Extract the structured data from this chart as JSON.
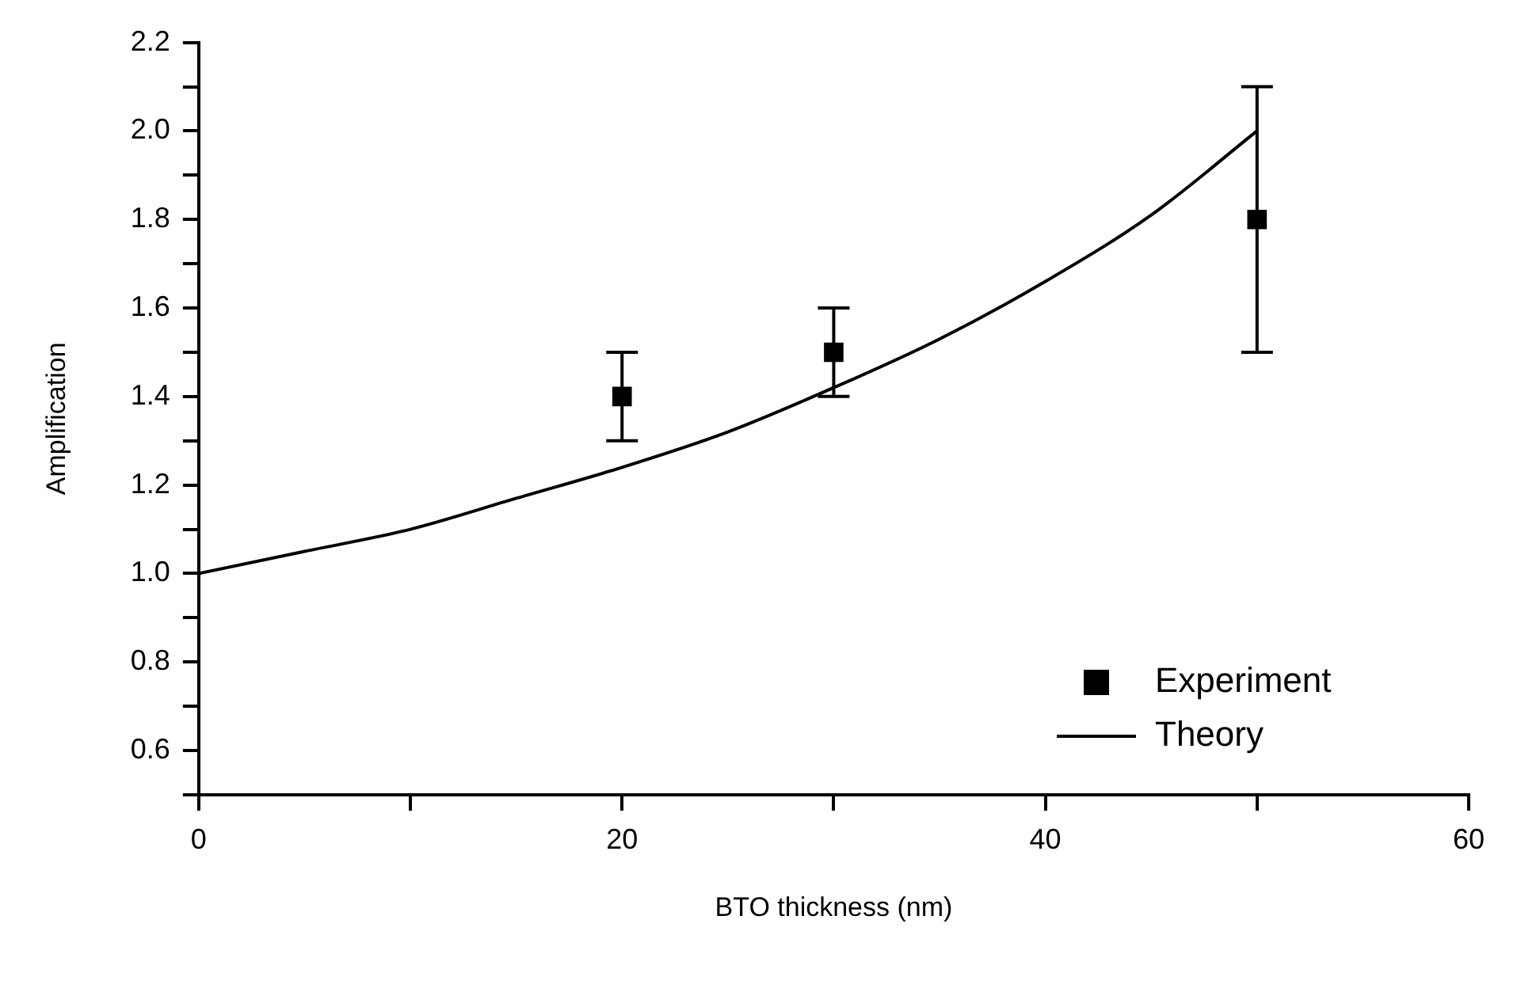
{
  "chart_data": {
    "type": "scatter",
    "xlabel": "BTO thickness (nm)",
    "ylabel": "Amplification",
    "xlim": [
      0,
      60
    ],
    "xticks": [
      0,
      {
        "value": 10,
        "label": null
      },
      20,
      {
        "value": 30,
        "label": null
      },
      40,
      {
        "value": 50,
        "label": null
      },
      60
    ],
    "ylim": [
      0.5,
      2.2
    ],
    "yticks": [
      {
        "value": 0.5,
        "label": null
      },
      0.6,
      {
        "value": 0.7,
        "label": null
      },
      0.8,
      {
        "value": 0.9,
        "label": null
      },
      {
        "value": 1,
        "label": "1.0"
      },
      {
        "value": 1.1,
        "label": null
      },
      1.2,
      {
        "value": 1.3,
        "label": null
      },
      1.4,
      {
        "value": 1.5,
        "label": null
      },
      1.6,
      {
        "value": 1.7,
        "label": null
      },
      1.8,
      {
        "value": 1.9,
        "label": null
      },
      {
        "value": 2,
        "label": "2.0"
      },
      {
        "value": 2.1,
        "label": null
      },
      2.2
    ],
    "grid": false,
    "legend": "bottom right",
    "series": [
      {
        "name": "Experiment",
        "color": "#000000",
        "marker": "square",
        "x": [
          20,
          30,
          50
        ],
        "values": [
          1.4,
          1.5,
          1.8
        ],
        "errors": [
          0.1,
          0.1,
          0.3
        ]
      },
      {
        "name": "Theory",
        "type": "line",
        "color": "#000000",
        "marker": "none",
        "line_style": "solid",
        "x": [
          0,
          5,
          10,
          15,
          20,
          25,
          30,
          35,
          40,
          45,
          50
        ],
        "values": [
          1.0,
          1.05,
          1.1,
          1.17,
          1.24,
          1.32,
          1.42,
          1.53,
          1.66,
          1.81,
          2.0
        ]
      }
    ]
  }
}
